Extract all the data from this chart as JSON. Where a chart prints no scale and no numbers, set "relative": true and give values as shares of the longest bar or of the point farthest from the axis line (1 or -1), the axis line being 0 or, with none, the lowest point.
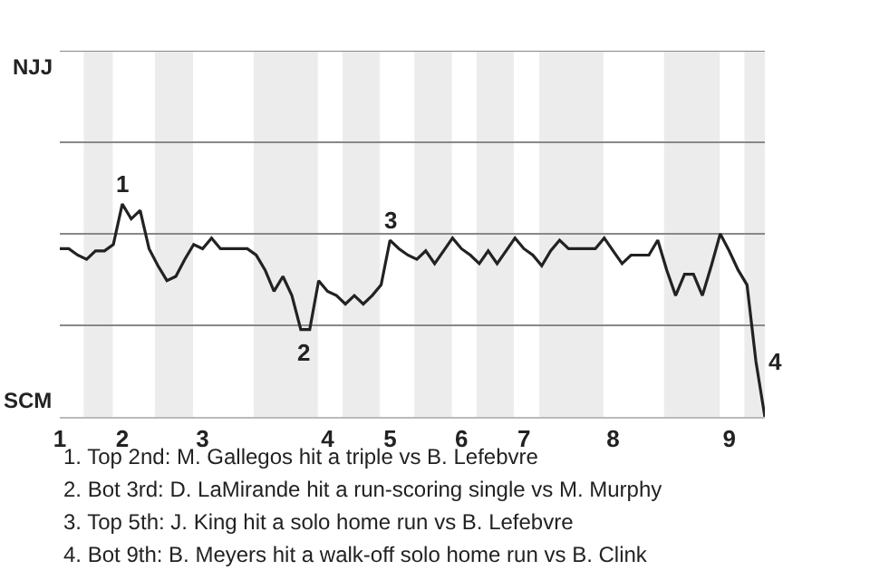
{
  "chart_data": {
    "type": "line",
    "relative": true,
    "categories": [
      "1",
      null,
      null,
      null,
      null,
      null,
      null,
      "2",
      null,
      null,
      null,
      null,
      null,
      null,
      null,
      null,
      "3",
      null,
      null,
      null,
      null,
      null,
      null,
      null,
      null,
      null,
      null,
      null,
      null,
      null,
      "4",
      null,
      null,
      null,
      null,
      null,
      null,
      "5",
      null,
      null,
      null,
      null,
      null,
      null,
      null,
      "6",
      null,
      null,
      null,
      null,
      null,
      null,
      "7",
      null,
      null,
      null,
      null,
      null,
      null,
      null,
      null,
      null,
      "8",
      null,
      null,
      null,
      null,
      null,
      null,
      null,
      null,
      null,
      null,
      null,
      null,
      "9",
      null,
      null,
      null,
      null
    ],
    "series": [
      {
        "color": "#222222",
        "values": [
          0.79,
          0.79,
          0.76,
          0.74,
          0.78,
          0.78,
          0.81,
          1,
          0.93,
          0.97,
          0.79,
          0.71,
          0.64,
          0.66,
          0.74,
          0.81,
          0.79,
          0.84,
          0.79,
          0.79,
          0.79,
          0.79,
          0.76,
          0.69,
          0.59,
          0.66,
          0.57,
          0.41,
          0.41,
          0.64,
          0.59,
          0.57,
          0.53,
          0.57,
          0.53,
          0.57,
          0.62,
          0.83,
          0.79,
          0.76,
          0.74,
          0.78,
          0.72,
          0.78,
          0.84,
          0.79,
          0.76,
          0.72,
          0.78,
          0.72,
          0.78,
          0.84,
          0.79,
          0.76,
          0.71,
          0.78,
          0.83,
          0.79,
          0.79,
          0.79,
          0.79,
          0.84,
          0.78,
          0.72,
          0.76,
          0.76,
          0.76,
          0.83,
          0.69,
          0.57,
          0.67,
          0.67,
          0.57,
          0.71,
          0.86,
          0.78,
          0.69,
          0.62,
          0.26,
          0
        ]
      }
    ],
    "marker": "none",
    "line_style": "solid",
    "ref_lines": [
      {
        "axis": "y",
        "value": 0.43,
        "color": "#888888"
      },
      {
        "axis": "y",
        "value": 0.86,
        "color": "#888888"
      },
      {
        "axis": "y",
        "value": 1.29,
        "color": "#888888"
      },
      {
        "axis": "y",
        "value": 1.72,
        "color": "#888888"
      }
    ],
    "annotations": [
      "NJJ",
      "SCM",
      {
        "text": "1",
        "y": 1
      },
      {
        "text": "2",
        "y": 0.41
      },
      {
        "text": "3",
        "y": 0.83
      },
      "4",
      "1. Top 2nd: M. Gallegos hit a triple vs B. Lefebvre",
      "2. Bot 3rd: D. LaMirande hit a run-scoring single vs M. Murphy",
      "3. Top 5th: J. King hit a solo home run vs B. Lefebvre",
      "4. Bot 9th: B. Meyers hit a walk-off solo home run vs B. Clink"
    ]
  }
}
